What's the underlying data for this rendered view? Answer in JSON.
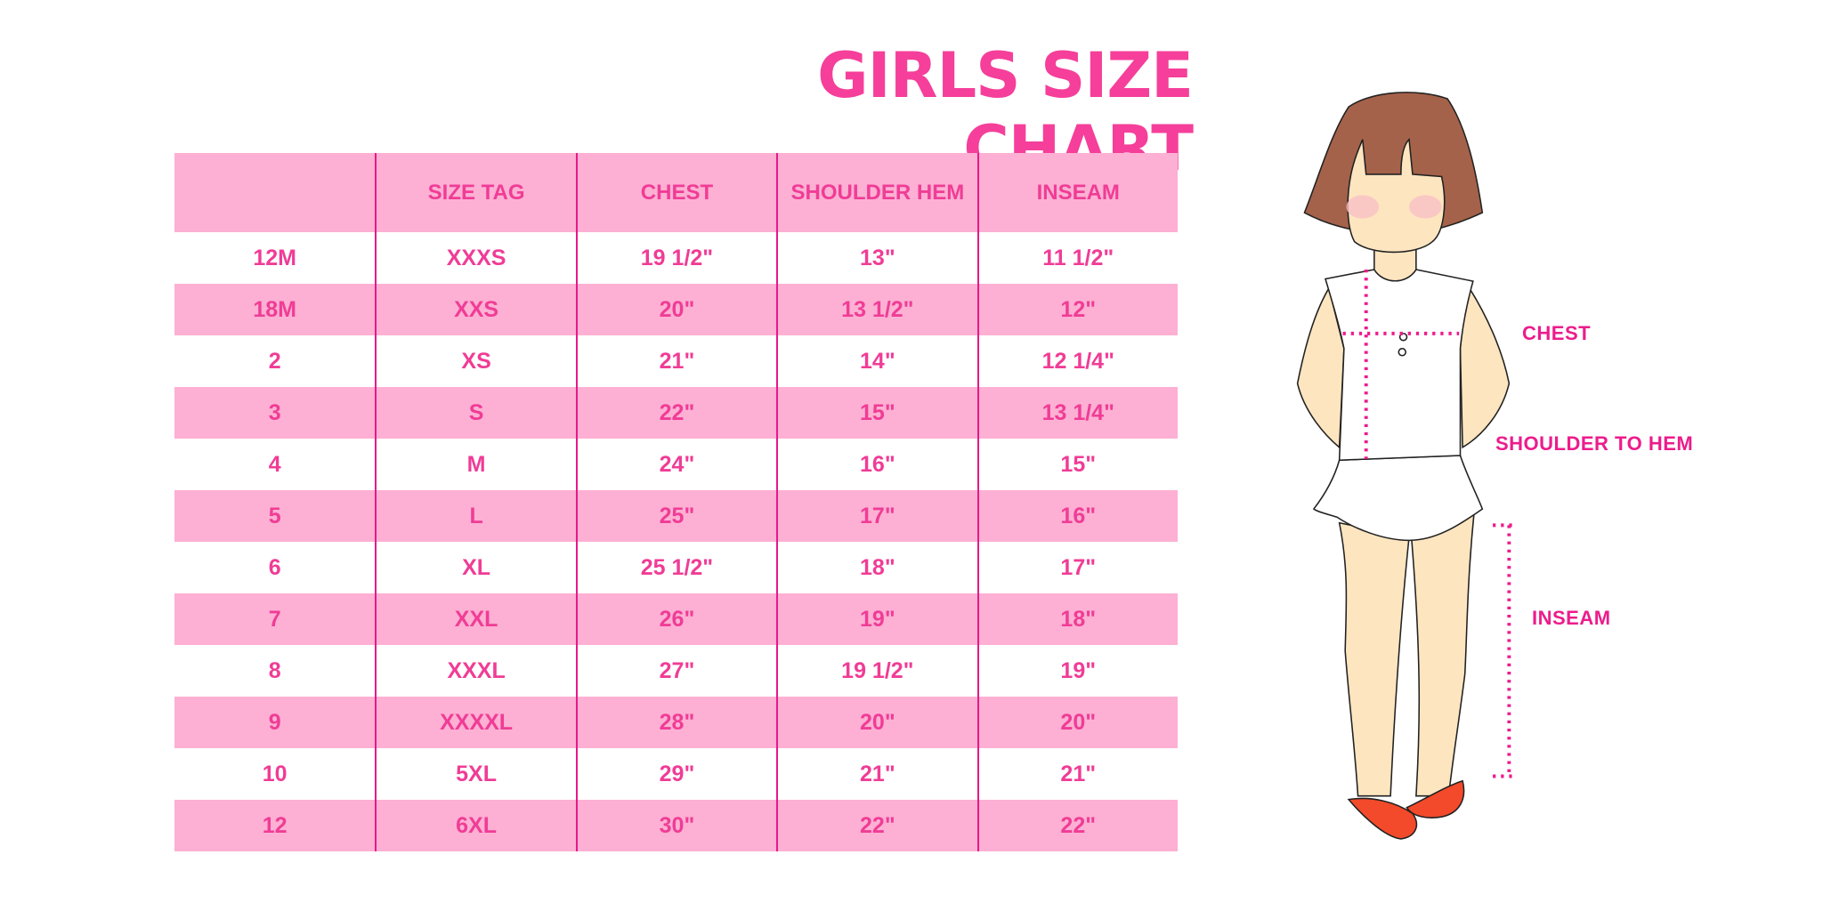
{
  "title": "GIRLS SIZE CHART",
  "table": {
    "headers": [
      "",
      "SIZE TAG",
      "CHEST",
      "SHOULDER HEM",
      "INSEAM"
    ],
    "rows": [
      [
        "12M",
        "XXXS",
        "19 1/2\"",
        "13\"",
        "11 1/2\""
      ],
      [
        "18M",
        "XXS",
        "20\"",
        "13 1/2\"",
        "12\""
      ],
      [
        "2",
        "XS",
        "21\"",
        "14\"",
        "12 1/4\""
      ],
      [
        "3",
        "S",
        "22\"",
        "15\"",
        "13 1/4\""
      ],
      [
        "4",
        "M",
        "24\"",
        "16\"",
        "15\""
      ],
      [
        "5",
        "L",
        "25\"",
        "17\"",
        "16\""
      ],
      [
        "6",
        "XL",
        "25 1/2\"",
        "18\"",
        "17\""
      ],
      [
        "7",
        "XXL",
        "26\"",
        "19\"",
        "18\""
      ],
      [
        "8",
        "XXXL",
        "27\"",
        "19 1/2\"",
        "19\""
      ],
      [
        "9",
        "XXXXL",
        "28\"",
        "20\"",
        "20\""
      ],
      [
        "10",
        "5XL",
        "29\"",
        "21\"",
        "21\""
      ],
      [
        "12",
        "6XL",
        "30\"",
        "22\"",
        "22\""
      ]
    ]
  },
  "figure": {
    "labels": {
      "chest": "CHEST",
      "shoulder_to_hem": "SHOULDER TO HEM",
      "inseam": "INSEAM"
    }
  },
  "colors": {
    "title": "#f53f9a",
    "text": "#f03c96",
    "row_fill": "#fdb0d3",
    "divider": "#e6198a",
    "measure": "#ec1c8c"
  }
}
